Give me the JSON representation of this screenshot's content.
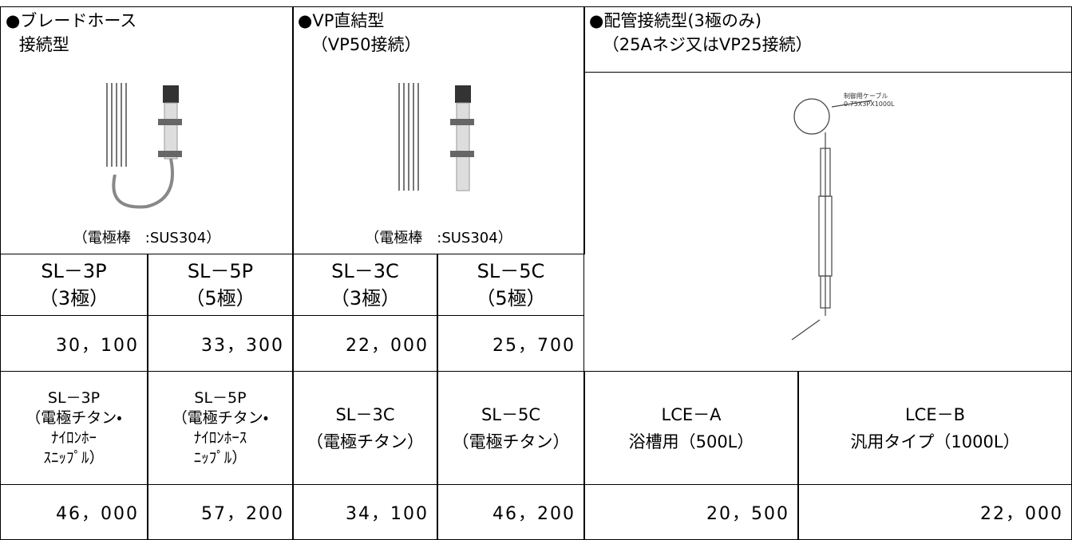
{
  "groups": [
    {
      "header": [
        "●ブレードホース",
        "接続型"
      ],
      "caption": "（電極棒　:SUS304）"
    },
    {
      "header": [
        "●VP直結型",
        "（VP50接続）"
      ],
      "caption": "（電極棒　:SUS304）"
    },
    {
      "header": [
        "●配管接続型(3極のみ)",
        "（25Aネジ又はVP25接続）"
      ]
    }
  ],
  "drawing_labels": [
    "制御用ケーブル",
    "0.75X3PX1000L"
  ],
  "models": [
    {
      "name": "SL－3P",
      "poles": "（3極）",
      "price": "30，100"
    },
    {
      "name": "SL－5P",
      "poles": "（5極）",
      "price": "33，300"
    },
    {
      "name": "SL－3C",
      "poles": "（3極）",
      "price": "22，000"
    },
    {
      "name": "SL－5C",
      "poles": "（5極）",
      "price": "25，700"
    }
  ],
  "variants": [
    {
      "lines": [
        "SL－3P",
        "（電極チタン・",
        "ﾅｲﾛﾝﾎｰ",
        "ｽﾆｯﾌﾟﾙ）"
      ],
      "price": "46，000"
    },
    {
      "lines": [
        "SL－5P",
        "（電極チタン・",
        "ﾅｲﾛﾝﾎｰｽ",
        "ﾆｯﾌﾟﾙ）"
      ],
      "price": "57，200"
    },
    {
      "lines": [
        "SL－3C",
        "（電極チタン）"
      ],
      "price": "34，100"
    },
    {
      "lines": [
        "SL－5C",
        "（電極チタン）"
      ],
      "price": "46，200"
    },
    {
      "lines": [
        "LCE－A",
        "浴槽用（500L）"
      ],
      "price": "20，500"
    },
    {
      "lines": [
        "LCE－B",
        "汎用タイプ（1000L）"
      ],
      "price": "22，000"
    }
  ]
}
